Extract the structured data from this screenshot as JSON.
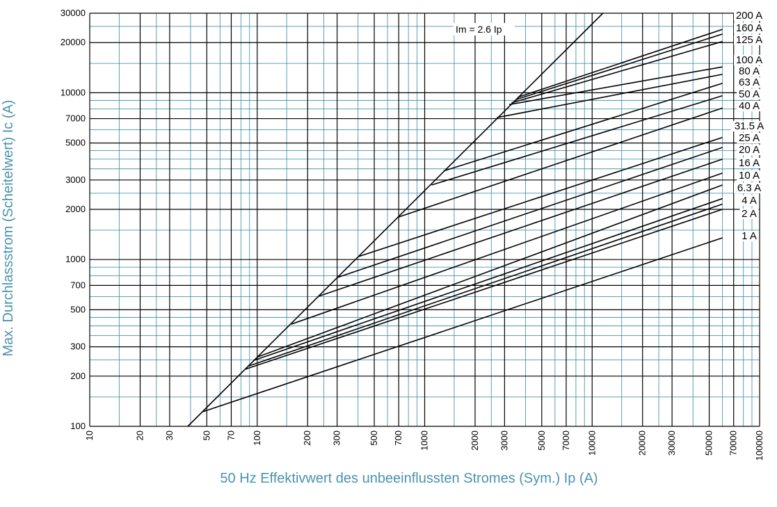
{
  "colors": {
    "minor_grid": "#4a93ad",
    "major_grid": "#000000",
    "curves": "#000000",
    "axis_title": "#4a93ad"
  },
  "chart_data": {
    "type": "line",
    "x_scale": "log",
    "y_scale": "log",
    "xlim": [
      10,
      100000
    ],
    "ylim": [
      100,
      30000
    ],
    "xlabel": "50 Hz Effektivwert des unbeeinflussten Stromes (Sym.) Ip (A)",
    "ylabel": "Max. Durchlassstrom (Scheitelwert) Ic (A)",
    "x_tick_labels": [
      {
        "value": 10,
        "label": "10"
      },
      {
        "value": 20,
        "label": "20"
      },
      {
        "value": 30,
        "label": "30"
      },
      {
        "value": 50,
        "label": "50"
      },
      {
        "value": 70,
        "label": "70"
      },
      {
        "value": 100,
        "label": "100"
      },
      {
        "value": 200,
        "label": "200"
      },
      {
        "value": 300,
        "label": "300"
      },
      {
        "value": 500,
        "label": "500"
      },
      {
        "value": 700,
        "label": "700"
      },
      {
        "value": 1000,
        "label": "1000"
      },
      {
        "value": 2000,
        "label": "2000"
      },
      {
        "value": 3000,
        "label": "3000"
      },
      {
        "value": 5000,
        "label": "5000"
      },
      {
        "value": 7000,
        "label": "7000"
      },
      {
        "value": 10000,
        "label": "10000"
      },
      {
        "value": 20000,
        "label": "20000"
      },
      {
        "value": 30000,
        "label": "30000"
      },
      {
        "value": 50000,
        "label": "50000"
      },
      {
        "value": 70000,
        "label": "70000"
      },
      {
        "value": 100000,
        "label": "100000"
      }
    ],
    "y_tick_labels": [
      {
        "value": 100,
        "label": "100"
      },
      {
        "value": 200,
        "label": "200"
      },
      {
        "value": 300,
        "label": "300"
      },
      {
        "value": 500,
        "label": "500"
      },
      {
        "value": 700,
        "label": "700"
      },
      {
        "value": 1000,
        "label": "1000"
      },
      {
        "value": 2000,
        "label": "2000"
      },
      {
        "value": 3000,
        "label": "3000"
      },
      {
        "value": 5000,
        "label": "5000"
      },
      {
        "value": 7000,
        "label": "7000"
      },
      {
        "value": 10000,
        "label": "10000"
      },
      {
        "value": 20000,
        "label": "20000"
      },
      {
        "value": 30000,
        "label": "30000"
      }
    ],
    "x_grid_values": [
      10,
      15,
      20,
      25,
      30,
      40,
      50,
      60,
      70,
      80,
      90,
      100,
      150,
      200,
      250,
      300,
      400,
      500,
      600,
      700,
      800,
      900,
      1000,
      1500,
      2000,
      2500,
      3000,
      4000,
      5000,
      6000,
      7000,
      8000,
      9000,
      10000,
      15000,
      20000,
      25000,
      30000,
      40000,
      50000,
      60000,
      70000,
      80000,
      90000,
      100000
    ],
    "y_grid_values": [
      100,
      150,
      200,
      250,
      300,
      350,
      400,
      450,
      500,
      600,
      700,
      800,
      900,
      1000,
      1500,
      2000,
      2500,
      3000,
      3500,
      4000,
      4500,
      5000,
      6000,
      7000,
      8000,
      9000,
      10000,
      15000,
      20000,
      25000,
      30000
    ],
    "major_x_values": [
      10,
      20,
      30,
      50,
      70,
      100,
      200,
      300,
      500,
      700,
      1000,
      2000,
      3000,
      5000,
      7000,
      10000,
      20000,
      30000,
      50000,
      70000,
      100000
    ],
    "major_y_values": [
      100,
      200,
      300,
      500,
      700,
      1000,
      2000,
      3000,
      5000,
      7000,
      10000,
      20000,
      30000
    ],
    "reference_line": {
      "name": "Im = 2.6 Ip",
      "x": [
        38.5,
        11600
      ],
      "y": [
        100,
        30000
      ]
    },
    "annotation": "Im = 2.6 Ip",
    "series": [
      {
        "name": "1 A",
        "x": [
          47,
          60000
        ],
        "y": [
          122,
          1350
        ]
      },
      {
        "name": "2 A",
        "x": [
          85,
          60000
        ],
        "y": [
          220,
          2000
        ]
      },
      {
        "name": "4 A",
        "x": [
          89,
          60000
        ],
        "y": [
          230,
          2150
        ]
      },
      {
        "name": "6.3 A",
        "x": [
          95,
          60000
        ],
        "y": [
          248,
          2320
        ]
      },
      {
        "name": "10 A",
        "x": [
          100,
          60000
        ],
        "y": [
          260,
          2800
        ]
      },
      {
        "name": "16 A",
        "x": [
          160,
          60000
        ],
        "y": [
          410,
          3300
        ]
      },
      {
        "name": "20 A",
        "x": [
          230,
          60000
        ],
        "y": [
          600,
          4000
        ]
      },
      {
        "name": "25 A",
        "x": [
          300,
          60000
        ],
        "y": [
          780,
          4700
        ]
      },
      {
        "name": "31.5 A",
        "x": [
          400,
          60000
        ],
        "y": [
          1040,
          5400
        ]
      },
      {
        "name": "40 A",
        "x": [
          700,
          60000
        ],
        "y": [
          1800,
          8100
        ]
      },
      {
        "name": "50 A",
        "x": [
          1100,
          60000
        ],
        "y": [
          2800,
          9600
        ]
      },
      {
        "name": "63 A",
        "x": [
          1300,
          60000
        ],
        "y": [
          3400,
          11400
        ]
      },
      {
        "name": "80 A",
        "x": [
          2700,
          60000
        ],
        "y": [
          7100,
          12900
        ]
      },
      {
        "name": "100 A",
        "x": [
          3200,
          60000
        ],
        "y": [
          8500,
          14300
        ]
      },
      {
        "name": "125 A",
        "x": [
          3300,
          60000
        ],
        "y": [
          8700,
          20300
        ]
      },
      {
        "name": "160 A",
        "x": [
          3500,
          60000
        ],
        "y": [
          9100,
          22500
        ]
      },
      {
        "name": "200 A",
        "x": [
          3600,
          60000
        ],
        "y": [
          9400,
          24000
        ]
      }
    ],
    "curve_labels": [
      "200 A",
      "160 A",
      "125 A",
      "100 A",
      "80 A",
      "63 A",
      "50 A",
      "40 A",
      "31.5 A",
      "25 A",
      "20 A",
      "16 A",
      "10 A",
      "6.3 A",
      "4 A",
      "2 A",
      "1 A"
    ],
    "grid": true
  }
}
